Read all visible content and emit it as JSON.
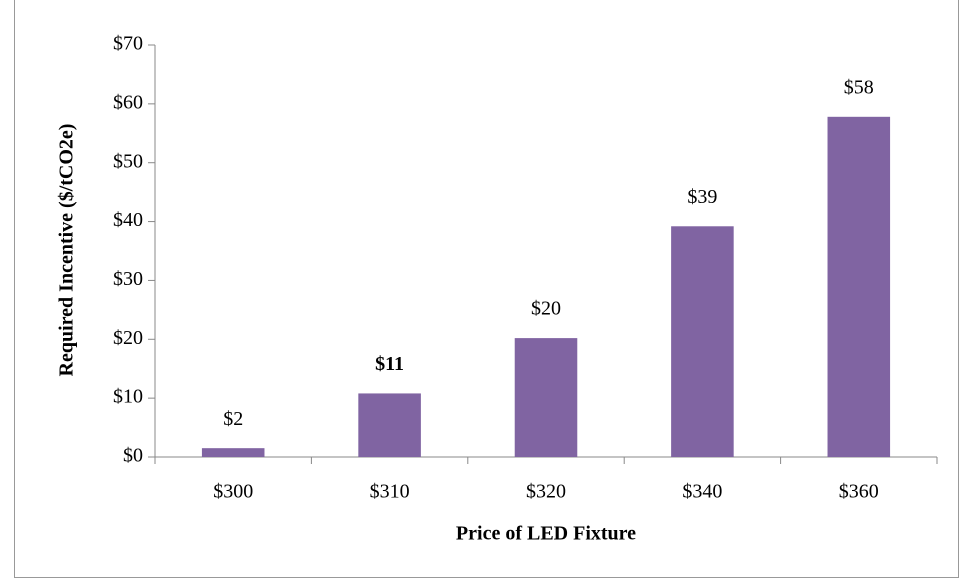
{
  "chart_data": {
    "type": "bar",
    "x_label": "Price of LED Fixture",
    "y_label": "Required Incentive ($/tCO2e)",
    "categories": [
      "$300",
      "$310",
      "$320",
      "$340",
      "$360"
    ],
    "values": [
      1.5,
      10.8,
      20.2,
      39.2,
      57.8
    ],
    "value_labels": [
      "$2",
      "$11",
      "$20",
      "$39",
      "$58"
    ],
    "value_label_weights": [
      "normal",
      "bold",
      "normal",
      "normal",
      "normal"
    ],
    "color": "#8064a2",
    "ylim": [
      0,
      70
    ],
    "yticks": [
      {
        "value": 0,
        "label": "$0"
      },
      {
        "value": 10,
        "label": "$10"
      },
      {
        "value": 20,
        "label": "$20"
      },
      {
        "value": 30,
        "label": "$30"
      },
      {
        "value": 40,
        "label": "$40"
      },
      {
        "value": 50,
        "label": "$50"
      },
      {
        "value": 60,
        "label": "$60"
      },
      {
        "value": 70,
        "label": "$70"
      }
    ],
    "grid": false
  }
}
